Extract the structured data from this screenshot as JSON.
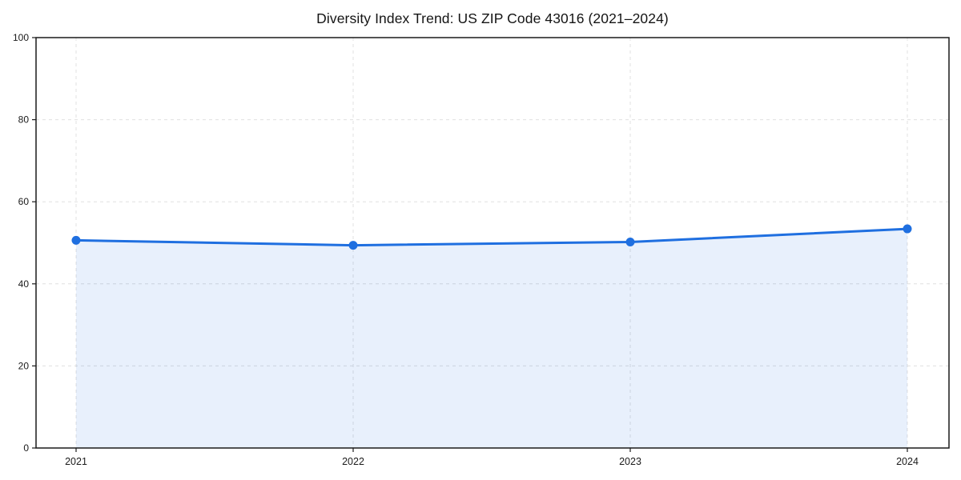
{
  "chart_data": {
    "type": "line",
    "title": "Diversity Index Trend: US ZIP Code 43016 (2021–2024)",
    "x": [
      "2021",
      "2022",
      "2023",
      "2024"
    ],
    "series": [
      {
        "name": "Diversity Index",
        "values": [
          50.6,
          49.4,
          50.2,
          53.4
        ],
        "color": "#1f6fe0",
        "area_fill": "rgba(31, 111, 224, 0.10)",
        "marker": "circle"
      }
    ],
    "xlabel": "",
    "ylabel": "",
    "ylim": [
      0,
      100
    ],
    "yticks": [
      0,
      20,
      40,
      60,
      80,
      100
    ],
    "grid": "dashed",
    "grid_color": "#e0e0e0",
    "axis_color": "#1a1a1a",
    "tick_label_color": "#1a1a1a",
    "legend": "none",
    "background": "#ffffff",
    "area": true
  }
}
